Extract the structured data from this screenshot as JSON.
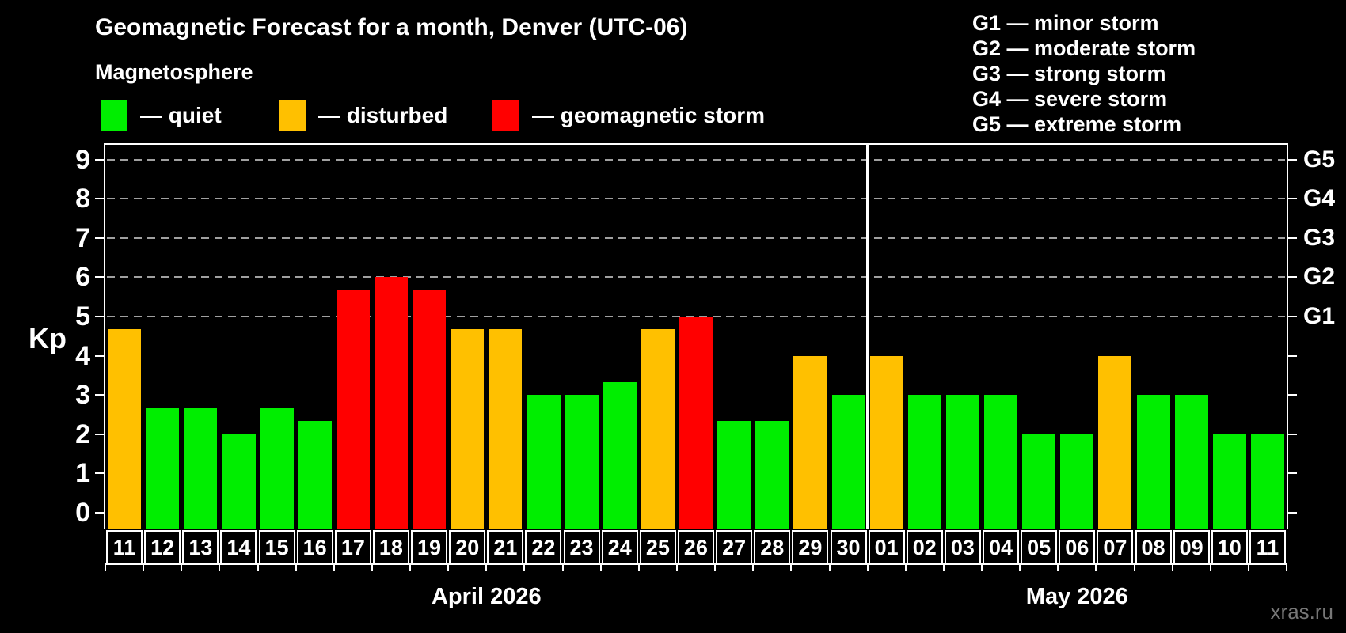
{
  "title": "Geomagnetic Forecast for a month, Denver (UTC-06)",
  "subtitle": "Magnetosphere",
  "watermark": "xras.ru",
  "legend": {
    "items": [
      {
        "key": "quiet",
        "label": "— quiet",
        "color": "#00ee00"
      },
      {
        "key": "disturbed",
        "label": "— disturbed",
        "color": "#ffc000"
      },
      {
        "key": "storm",
        "label": "— geomagnetic storm",
        "color": "#ff0000"
      }
    ]
  },
  "g_legend": {
    "items": [
      {
        "text": "G1 — minor storm"
      },
      {
        "text": "G2 — moderate storm"
      },
      {
        "text": "G3 — strong storm"
      },
      {
        "text": "G4 — severe storm"
      },
      {
        "text": "G5 — extreme storm"
      }
    ]
  },
  "chart_data": {
    "type": "bar",
    "title": "Geomagnetic Forecast for a month, Denver (UTC-06)",
    "ylabel": "Kp",
    "ylim": [
      0,
      9
    ],
    "yticks": [
      "0",
      "1",
      "2",
      "3",
      "4",
      "5",
      "6",
      "7",
      "8",
      "9"
    ],
    "gridlines_kp": [
      5,
      6,
      7,
      8,
      9
    ],
    "right_axis_labels": [
      {
        "kp": 5,
        "label": "G1"
      },
      {
        "kp": 6,
        "label": "G2"
      },
      {
        "kp": 7,
        "label": "G3"
      },
      {
        "kp": 8,
        "label": "G4"
      },
      {
        "kp": 9,
        "label": "G5"
      }
    ],
    "colors": {
      "quiet": "#00ee00",
      "disturbed": "#ffc000",
      "storm": "#ff0000"
    },
    "months": [
      {
        "label": "April 2026",
        "days": [
          {
            "day": "11",
            "kp": 4.67,
            "status": "disturbed"
          },
          {
            "day": "12",
            "kp": 2.67,
            "status": "quiet"
          },
          {
            "day": "13",
            "kp": 2.67,
            "status": "quiet"
          },
          {
            "day": "14",
            "kp": 2.0,
            "status": "quiet"
          },
          {
            "day": "15",
            "kp": 2.67,
            "status": "quiet"
          },
          {
            "day": "16",
            "kp": 2.33,
            "status": "quiet"
          },
          {
            "day": "17",
            "kp": 5.67,
            "status": "storm"
          },
          {
            "day": "18",
            "kp": 6.0,
            "status": "storm"
          },
          {
            "day": "19",
            "kp": 5.67,
            "status": "storm"
          },
          {
            "day": "20",
            "kp": 4.67,
            "status": "disturbed"
          },
          {
            "day": "21",
            "kp": 4.67,
            "status": "disturbed"
          },
          {
            "day": "22",
            "kp": 3.0,
            "status": "quiet"
          },
          {
            "day": "23",
            "kp": 3.0,
            "status": "quiet"
          },
          {
            "day": "24",
            "kp": 3.33,
            "status": "quiet"
          },
          {
            "day": "25",
            "kp": 4.67,
            "status": "disturbed"
          },
          {
            "day": "26",
            "kp": 5.0,
            "status": "storm"
          },
          {
            "day": "27",
            "kp": 2.33,
            "status": "quiet"
          },
          {
            "day": "28",
            "kp": 2.33,
            "status": "quiet"
          },
          {
            "day": "29",
            "kp": 4.0,
            "status": "disturbed"
          },
          {
            "day": "30",
            "kp": 3.0,
            "status": "quiet"
          }
        ]
      },
      {
        "label": "May 2026",
        "days": [
          {
            "day": "01",
            "kp": 4.0,
            "status": "disturbed"
          },
          {
            "day": "02",
            "kp": 3.0,
            "status": "quiet"
          },
          {
            "day": "03",
            "kp": 3.0,
            "status": "quiet"
          },
          {
            "day": "04",
            "kp": 3.0,
            "status": "quiet"
          },
          {
            "day": "05",
            "kp": 2.0,
            "status": "quiet"
          },
          {
            "day": "06",
            "kp": 2.0,
            "status": "quiet"
          },
          {
            "day": "07",
            "kp": 4.0,
            "status": "disturbed"
          },
          {
            "day": "08",
            "kp": 3.0,
            "status": "quiet"
          },
          {
            "day": "09",
            "kp": 3.0,
            "status": "quiet"
          },
          {
            "day": "10",
            "kp": 2.0,
            "status": "quiet"
          },
          {
            "day": "11",
            "kp": 2.0,
            "status": "quiet"
          }
        ]
      }
    ]
  }
}
